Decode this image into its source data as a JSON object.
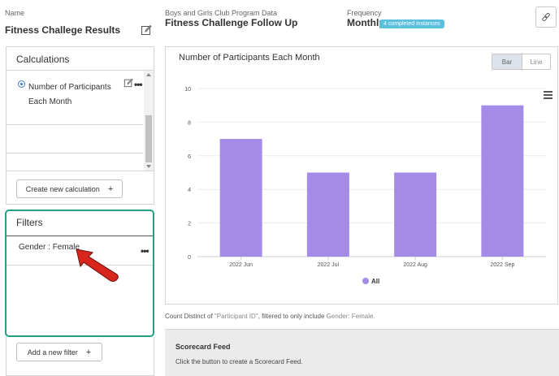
{
  "header": {
    "name_label": "Name",
    "name_value": "Fitness Challege Results",
    "program_label": "Boys and Girls Club Program Data",
    "program_value": "Fitness Challenge Follow Up",
    "frequency_label": "Frequency",
    "frequency_value": "Monthly",
    "instances_badge": "4 completed instances"
  },
  "calculations": {
    "title": "Calculations",
    "items": [
      {
        "label_line1": "Number of Participants",
        "label_line2": "Each Month",
        "selected": true
      }
    ],
    "create_button": "Create new calculation",
    "create_plus": "+"
  },
  "filters": {
    "title": "Filters",
    "items": [
      {
        "label": "Gender : Female"
      }
    ],
    "add_button": "Add a new filter",
    "add_plus": "+"
  },
  "chart_panel": {
    "toggle_bar": "Bar",
    "toggle_line": "Line",
    "description_prefix": "Count Distinct of ",
    "description_field": "\"Participant ID\"",
    "description_mid": ", filtered to only include ",
    "description_filter": "Gender: Female."
  },
  "chart_data": {
    "type": "bar",
    "title": "Number of Participants Each Month",
    "categories": [
      "2022 Jun",
      "2022 Jul",
      "2022 Aug",
      "2022 Sep"
    ],
    "series": [
      {
        "name": "All",
        "values": [
          7,
          5,
          5,
          9
        ]
      }
    ],
    "yticks": [
      "0",
      "2",
      "4",
      "6",
      "8",
      "10"
    ],
    "ylim": [
      0,
      10
    ],
    "grid": true,
    "legend": "bottom-center",
    "bar_color": "#a58be8",
    "xlabel": "",
    "ylabel": ""
  },
  "scorecard": {
    "title": "Scorecard Feed",
    "text": "Click the button to create a Scorecard Feed."
  },
  "colors": {
    "accent_teal": "#22a184",
    "badge": "#5bc0de",
    "radio": "#3a7bd5",
    "arrow": "#d9261c"
  }
}
